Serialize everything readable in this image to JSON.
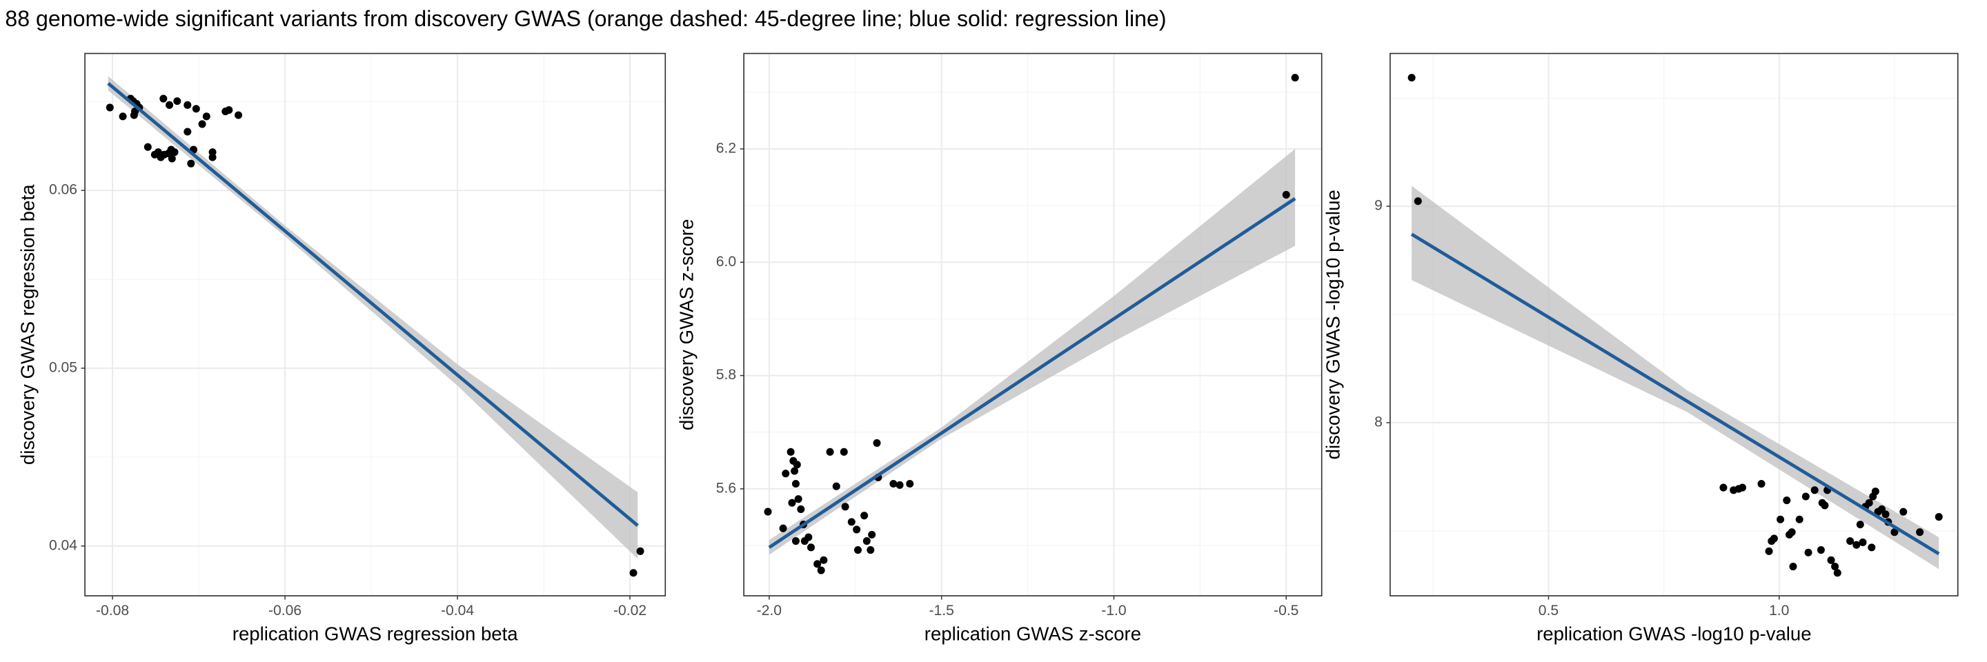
{
  "title": "88 genome-wide significant variants from discovery GWAS (orange dashed: 45-degree line; blue solid: regression line)",
  "chart_data": [
    {
      "type": "scatter",
      "x_label": "replication GWAS regression beta",
      "y_label": "discovery GWAS regression beta",
      "xlim": [
        -0.0832,
        -0.0159
      ],
      "ylim": [
        0.0372,
        0.0677
      ],
      "xticks": [
        -0.08,
        -0.06,
        -0.04,
        -0.02
      ],
      "yticks": [
        0.04,
        0.05,
        0.06
      ],
      "xminor": [
        -0.07,
        -0.05,
        -0.03
      ],
      "yminor": [
        0.045,
        0.055,
        0.065
      ],
      "grid": true,
      "point_color": "#000000",
      "line_color": "#1f5c99",
      "band_color": "#bfbfbf",
      "x": [
        -0.0803,
        -0.0788,
        -0.0779,
        -0.0776,
        -0.0774,
        -0.0772,
        -0.0769,
        -0.0775,
        -0.0759,
        -0.0751,
        -0.0747,
        -0.0744,
        -0.074,
        -0.0735,
        -0.0731,
        -0.0741,
        -0.0734,
        -0.0725,
        -0.0713,
        -0.0703,
        -0.0713,
        -0.0706,
        -0.0709,
        -0.0696,
        -0.0691,
        -0.0684,
        -0.0684,
        -0.0669,
        -0.0665,
        -0.0654,
        -0.0732,
        -0.0728,
        -0.0196,
        -0.0188
      ],
      "y": [
        0.06466,
        0.06416,
        0.06516,
        0.06502,
        0.06444,
        0.06487,
        0.06466,
        0.06423,
        0.06244,
        0.06201,
        0.06215,
        0.06186,
        0.06201,
        0.06208,
        0.06179,
        0.06516,
        0.0648,
        0.06502,
        0.0648,
        0.06459,
        0.0633,
        0.06229,
        0.06151,
        0.06373,
        0.06416,
        0.06215,
        0.06186,
        0.06444,
        0.06452,
        0.06423,
        0.06229,
        0.06215,
        0.03849,
        0.03971
      ],
      "regression": {
        "x": [
          -0.0805,
          -0.0191
        ],
        "y": [
          0.06602,
          0.04115
        ]
      },
      "band": {
        "x": [
          -0.0805,
          -0.06,
          -0.04,
          -0.0191
        ],
        "lower": [
          0.06562,
          0.05742,
          0.04902,
          0.03928
        ],
        "upper": [
          0.06642,
          0.05802,
          0.05022,
          0.04302
        ]
      }
    },
    {
      "type": "scatter",
      "x_label": "replication GWAS z-score",
      "y_label": "discovery GWAS z-score",
      "xlim": [
        -2.0735,
        -0.397
      ],
      "ylim": [
        5.4112,
        6.3685
      ],
      "xticks": [
        {
          "value": -2,
          "label": "-2.0"
        },
        -1.5,
        {
          "value": -1,
          "label": "-1.0"
        },
        -0.5
      ],
      "yticks": [
        5.6,
        5.8,
        {
          "value": 6,
          "label": "6.0"
        },
        6.2
      ],
      "xminor": [
        -1.75,
        -1.25,
        -0.75
      ],
      "yminor": [
        5.5,
        5.7,
        5.9,
        6.1,
        6.3
      ],
      "grid": true,
      "point_color": "#000000",
      "line_color": "#1f5c99",
      "band_color": "#bfbfbf",
      "x": [
        -2.0037,
        -1.9596,
        -1.9375,
        -1.9301,
        -1.9265,
        -1.9191,
        -1.9228,
        -1.9154,
        -1.9081,
        -1.9228,
        -1.8971,
        -1.886,
        -1.8787,
        -1.8603,
        -1.8493,
        -1.8419,
        -1.8235,
        -1.8051,
        -1.7831,
        -1.7794,
        -1.761,
        -1.7426,
        -1.7243,
        -1.7169,
        -1.7022,
        -1.7059,
        -1.6838,
        -1.6875,
        -1.9522,
        -1.9338,
        -1.9007,
        -1.7463,
        -1.6397,
        -1.6213,
        -1.5919,
        -0.5,
        -0.4743
      ],
      "y": [
        5.5596,
        5.5303,
        5.6652,
        5.6494,
        5.6315,
        5.6427,
        5.609,
        5.582,
        5.564,
        5.5079,
        5.5079,
        5.5146,
        5.4966,
        5.4674,
        5.4562,
        5.4742,
        5.6652,
        5.6045,
        5.6652,
        5.5685,
        5.5416,
        5.4921,
        5.5528,
        5.5079,
        5.5191,
        5.4921,
        5.6202,
        5.6809,
        5.627,
        5.5753,
        5.5371,
        5.5281,
        5.609,
        5.6067,
        5.609,
        6.1191,
        6.3258
      ],
      "regression": {
        "x": [
          -2,
          -0.4743
        ],
        "y": [
          5.4966,
          6.1124
        ]
      },
      "band": {
        "x": [
          -2,
          -1.5,
          -1,
          -0.4743
        ],
        "lower": [
          5.4836,
          5.6884,
          5.8602,
          6.029
        ],
        "upper": [
          5.5096,
          5.7084,
          5.9402,
          6.2
        ]
      }
    },
    {
      "type": "scatter",
      "x_label": "replication GWAS -log10 p-value",
      "y_label": "discovery GWAS -log10 p-value",
      "xlim": [
        0.1566,
        1.3874
      ],
      "ylim": [
        7.2,
        9.7059
      ],
      "xticks": [
        0.5,
        {
          "value": 1,
          "label": "1.0"
        }
      ],
      "yticks": [
        8,
        9
      ],
      "xminor": [
        0.25,
        0.75,
        1.25
      ],
      "yminor": [
        7.5,
        8.5,
        9.5
      ],
      "grid": true,
      "point_color": "#000000",
      "line_color": "#1f5c99",
      "band_color": "#bfbfbf",
      "x": [
        0.2033,
        0.217,
        0.8791,
        0.9011,
        0.9121,
        0.9203,
        0.9615,
        0.9835,
        0.978,
        0.989,
        1.0027,
        1.0165,
        1.022,
        1.0275,
        1.0302,
        1.044,
        1.0577,
        1.0632,
        1.0769,
        1.0934,
        1.0989,
        1.0907,
        1.1044,
        1.1126,
        1.1209,
        1.1264,
        1.1538,
        1.1676,
        1.1813,
        1.1758,
        1.1868,
        1.2033,
        1.2088,
        1.1951,
        1.2143,
        1.2005,
        1.2225,
        1.2308,
        1.2363,
        1.25,
        1.2692,
        1.3049,
        1.3462
      ],
      "y": [
        9.5941,
        9.0235,
        7.7,
        7.6882,
        7.6941,
        7.7,
        7.7176,
        7.4529,
        7.4059,
        7.4647,
        7.5529,
        7.6412,
        7.4824,
        7.4941,
        7.3353,
        7.5529,
        7.6588,
        7.4,
        7.6882,
        7.6294,
        7.6176,
        7.4118,
        7.6882,
        7.3647,
        7.3353,
        7.3059,
        7.4529,
        7.4353,
        7.4471,
        7.5294,
        7.6118,
        7.6588,
        7.6824,
        7.6294,
        7.5882,
        7.4235,
        7.6,
        7.5765,
        7.5412,
        7.4941,
        7.5882,
        7.4941,
        7.5647
      ],
      "regression": {
        "x": [
          0.2033,
          1.3462
        ],
        "y": [
          8.8706,
          7.3941
        ]
      },
      "band": {
        "x": [
          0.2033,
          0.8,
          1.3462
        ],
        "lower": [
          8.6588,
          8.05,
          7.3235
        ],
        "upper": [
          9.0941,
          8.15,
          7.4706
        ]
      }
    }
  ]
}
